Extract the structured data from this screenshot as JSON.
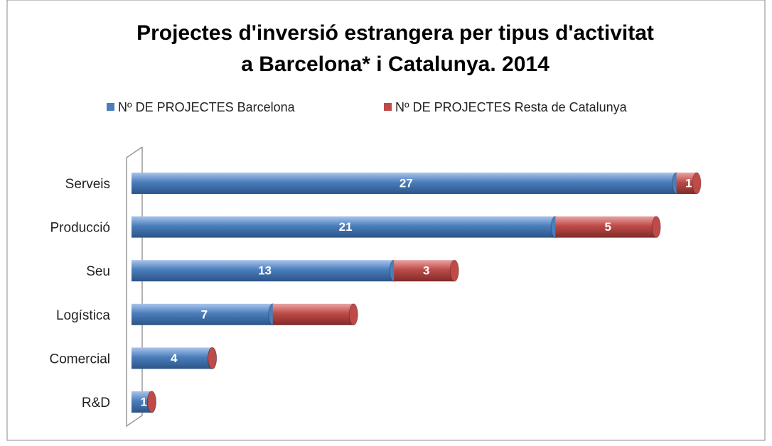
{
  "chart_data": {
    "type": "bar",
    "orientation": "horizontal",
    "stacked": true,
    "title": [
      "Projectes d'inversió estrangera per tipus d'activitat",
      "a Barcelona* i Catalunya. 2014"
    ],
    "categories": [
      "Serveis",
      "Producció",
      "Seu",
      "Logística",
      "Comercial",
      "R&D"
    ],
    "series": [
      {
        "name": "Nº DE PROJECTES Barcelona",
        "color": "#4a7ebb",
        "values": [
          27,
          21,
          13,
          7,
          4,
          1
        ]
      },
      {
        "name": "Nº DE PROJECTES Resta de Catalunya",
        "color": "#be4b48",
        "values": [
          1,
          5,
          3,
          4,
          0,
          0
        ],
        "value_labels": [
          "1",
          "5",
          "3",
          null,
          null,
          null
        ]
      }
    ],
    "xlim": [
      0,
      28
    ],
    "legend": "top"
  }
}
